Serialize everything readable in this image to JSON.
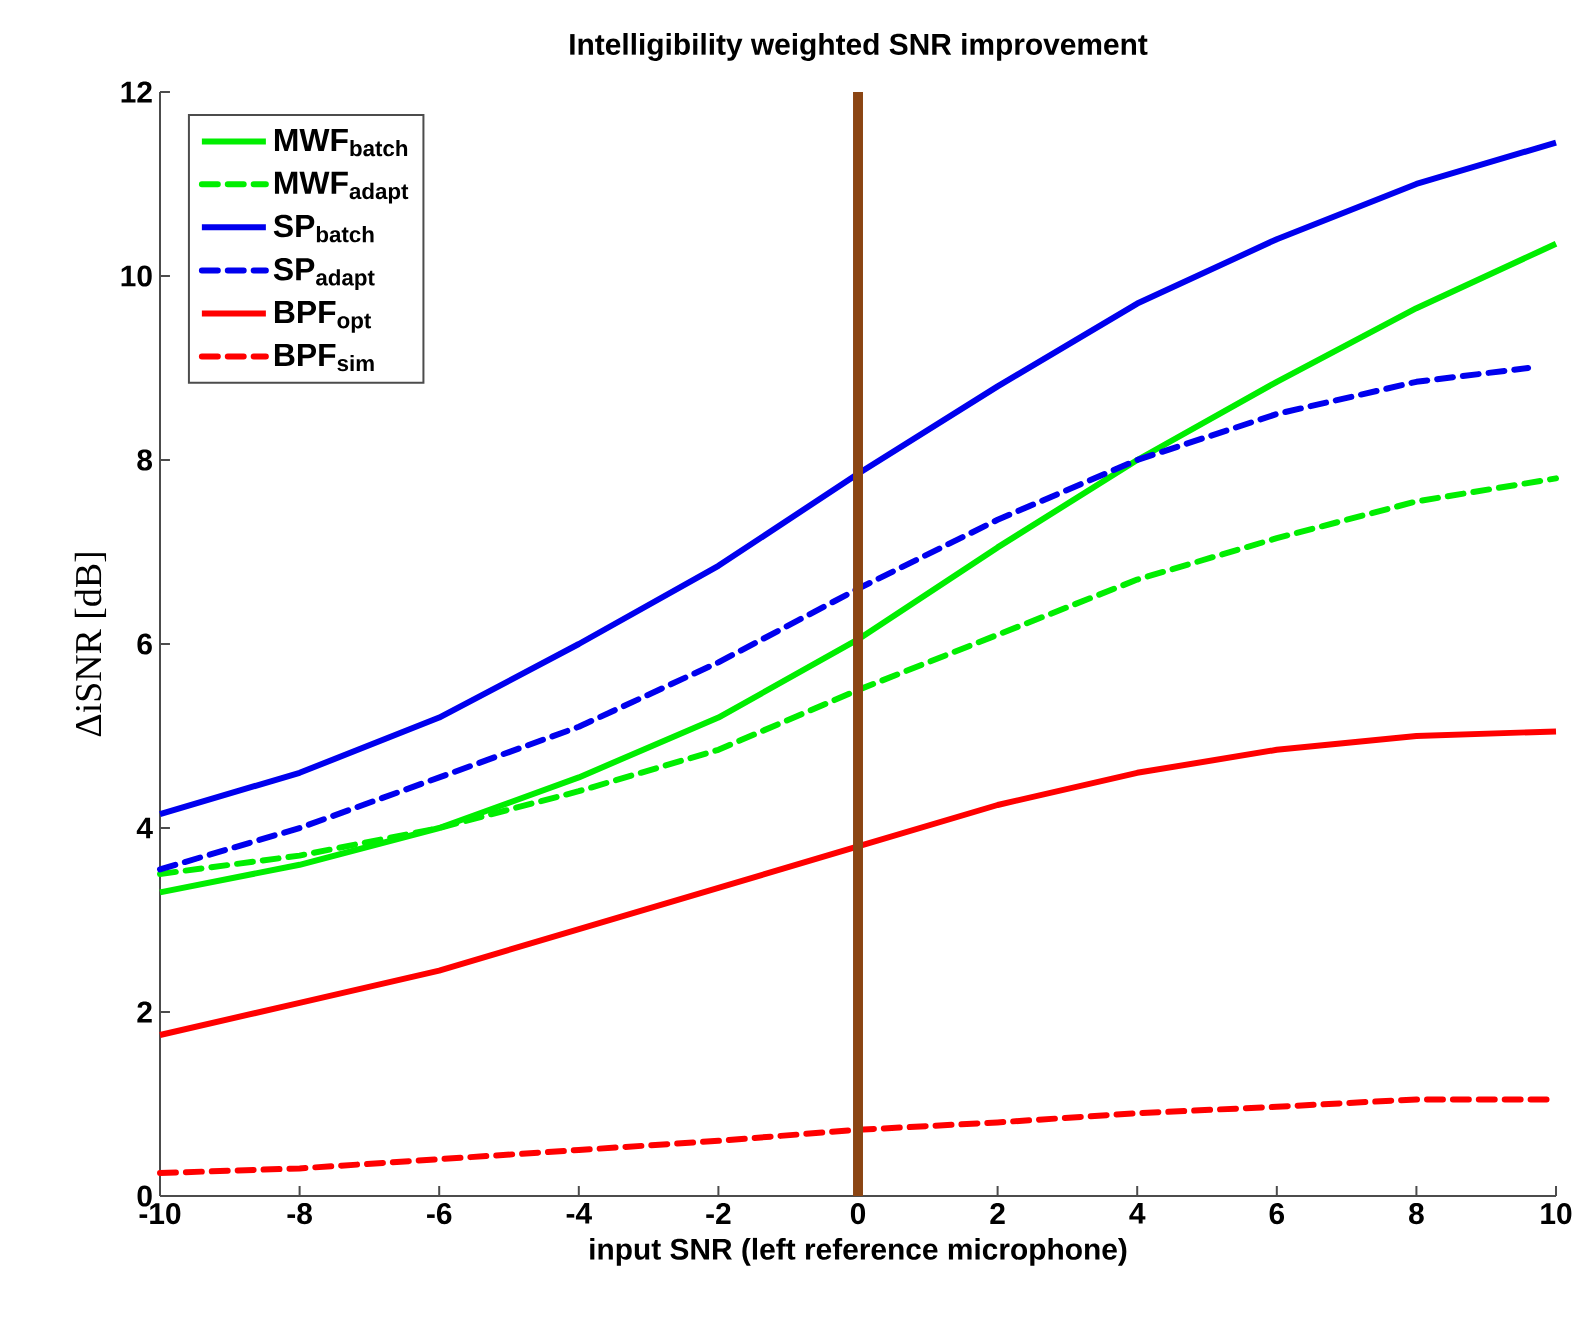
{
  "chart_data": {
    "type": "line",
    "title": "Intelligibility weighted SNR improvement",
    "xlabel": "input SNR (left reference microphone)",
    "ylabel": "ΔiSNR [dB]",
    "x": [
      -10,
      -8,
      -6,
      -4,
      -2,
      0,
      2,
      4,
      6,
      8,
      10
    ],
    "series": [
      {
        "name": "MWF$_{batch}$",
        "color": "#00ee00",
        "line_style": "solid",
        "values": [
          3.3,
          3.6,
          4.0,
          4.55,
          5.2,
          6.05,
          7.05,
          8.0,
          8.85,
          9.65,
          10.35
        ]
      },
      {
        "name": "MWF$_{adapt}$",
        "color": "#00ee00",
        "line_style": "dashed",
        "values": [
          3.5,
          3.7,
          4.0,
          4.4,
          4.85,
          5.5,
          6.1,
          6.7,
          7.15,
          7.55,
          7.8
        ]
      },
      {
        "name": "SP$_{batch}$",
        "color": "#0000ee",
        "line_style": "solid",
        "values": [
          4.15,
          4.6,
          5.2,
          6.0,
          6.85,
          7.85,
          8.8,
          9.7,
          10.4,
          11.0,
          11.45
        ]
      },
      {
        "name": "SP$_{adapt}$",
        "color": "#0000ee",
        "line_style": "dashed",
        "x": [
          -10,
          -8,
          -6,
          -4,
          -2,
          0,
          2,
          4,
          6,
          8,
          9.6
        ],
        "values": [
          3.55,
          4.0,
          4.55,
          5.1,
          5.8,
          6.6,
          7.35,
          8.0,
          8.5,
          8.85,
          9.0
        ]
      },
      {
        "name": "BPF$_{opt}$",
        "color": "#ff0000",
        "line_style": "solid",
        "values": [
          1.75,
          2.1,
          2.45,
          2.9,
          3.35,
          3.8,
          4.25,
          4.6,
          4.85,
          5.0,
          5.05
        ]
      },
      {
        "name": "BPF$_{sim}$",
        "color": "#ff0000",
        "line_style": "dashed",
        "values": [
          0.25,
          0.3,
          0.4,
          0.5,
          0.6,
          0.72,
          0.8,
          0.9,
          0.97,
          1.05,
          1.05
        ]
      }
    ],
    "xlim": [
      -10,
      10
    ],
    "ylim": [
      0,
      12
    ],
    "xticks": [
      -10,
      -8,
      -6,
      -4,
      -2,
      0,
      2,
      4,
      6,
      8,
      10
    ],
    "yticks": [
      0,
      2,
      4,
      6,
      8,
      10,
      12
    ],
    "ref_lines": [
      {
        "axis": "x",
        "value": 0,
        "color": "#8b4513",
        "line_style": "solid"
      }
    ],
    "legend": "top left",
    "grid": false,
    "marker": "none"
  }
}
